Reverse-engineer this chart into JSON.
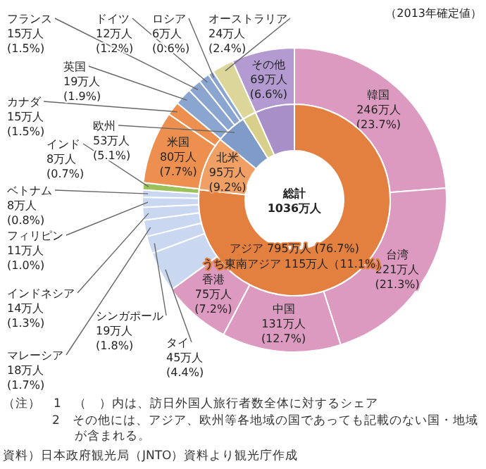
{
  "chart_data": [
    {
      "type": "donut",
      "subtitle": "（2013年確定値）",
      "categories": [
        "韓国",
        "台湾",
        "中国",
        "香港",
        "タイ",
        "シンガポール",
        "マレーシア",
        "インドネシア",
        "フィリピン",
        "ベトナム",
        "インド",
        "米国",
        "カナダ",
        "英国",
        "フランス",
        "ドイツ",
        "ロシア",
        "オーストラリア",
        "その他"
      ],
      "values": [
        246,
        221,
        131,
        75,
        45,
        19,
        18,
        14,
        11,
        8,
        8,
        80,
        15,
        19,
        15,
        12,
        6,
        24,
        69
      ],
      "colors": [
        "#dc9ac0",
        "#dc9ac0",
        "#dc9ac0",
        "#dc9ac0",
        "#c9d8f0",
        "#c9d8f0",
        "#c9d8f0",
        "#c9d8f0",
        "#c9d8f0",
        "#c9d8f0",
        "#9cc05a",
        "#ec8f4f",
        "#ec8f4f",
        "#8aa6d0",
        "#8aa6d0",
        "#8aa6d0",
        "#8aa6d0",
        "#dcd69a",
        "#b39ad0"
      ],
      "value_labels": [
        "246万人 (23.7%)",
        "221万人 (21.3%)",
        "131万人 (12.7%)",
        "75万人 (7.2%)",
        "45万人 (4.4%)",
        "19万人 (1.8%)",
        "18万人 (1.7%)",
        "14万人 (1.3%)",
        "11万人 (1.0%)",
        "8万人 (0.8%)",
        "8万人 (0.7%)",
        "80万人 (7.7%)",
        "15万人 (1.5%)",
        "19万人 (1.9%)",
        "15万人 (1.5%)",
        "12万人 (1.2%)",
        "6万人 (0.6%)",
        "24万人 (2.4%)",
        "69万人 (6.6%)"
      ],
      "annotations": [
        "（注）　1　（　）内は、訪日外国人旅行者数全体に対するシェア",
        "2　その他には、アジア、欧州等各地域の国であっても記載のない国・地域が含まれる。",
        "資料）日本政府観光局（JNTO）資料より観光庁作成"
      ]
    },
    {
      "type": "donut",
      "categories": [
        "アジア",
        "北米",
        "欧州",
        null,
        null
      ],
      "values": [
        795,
        95,
        53,
        24,
        69
      ],
      "colors": [
        "#e3803f",
        "#f0a064",
        "#7f9cc9",
        "#d8d08a",
        "#a98fc8"
      ],
      "value_labels": [
        "795万人 (76.7%)",
        "95万人 (9.2%)",
        "53万人 (5.1%)",
        null,
        null
      ],
      "annotations": [
        "総計 1036万人",
        "うち東南アジア 115万人（11.1%）"
      ]
    }
  ]
}
